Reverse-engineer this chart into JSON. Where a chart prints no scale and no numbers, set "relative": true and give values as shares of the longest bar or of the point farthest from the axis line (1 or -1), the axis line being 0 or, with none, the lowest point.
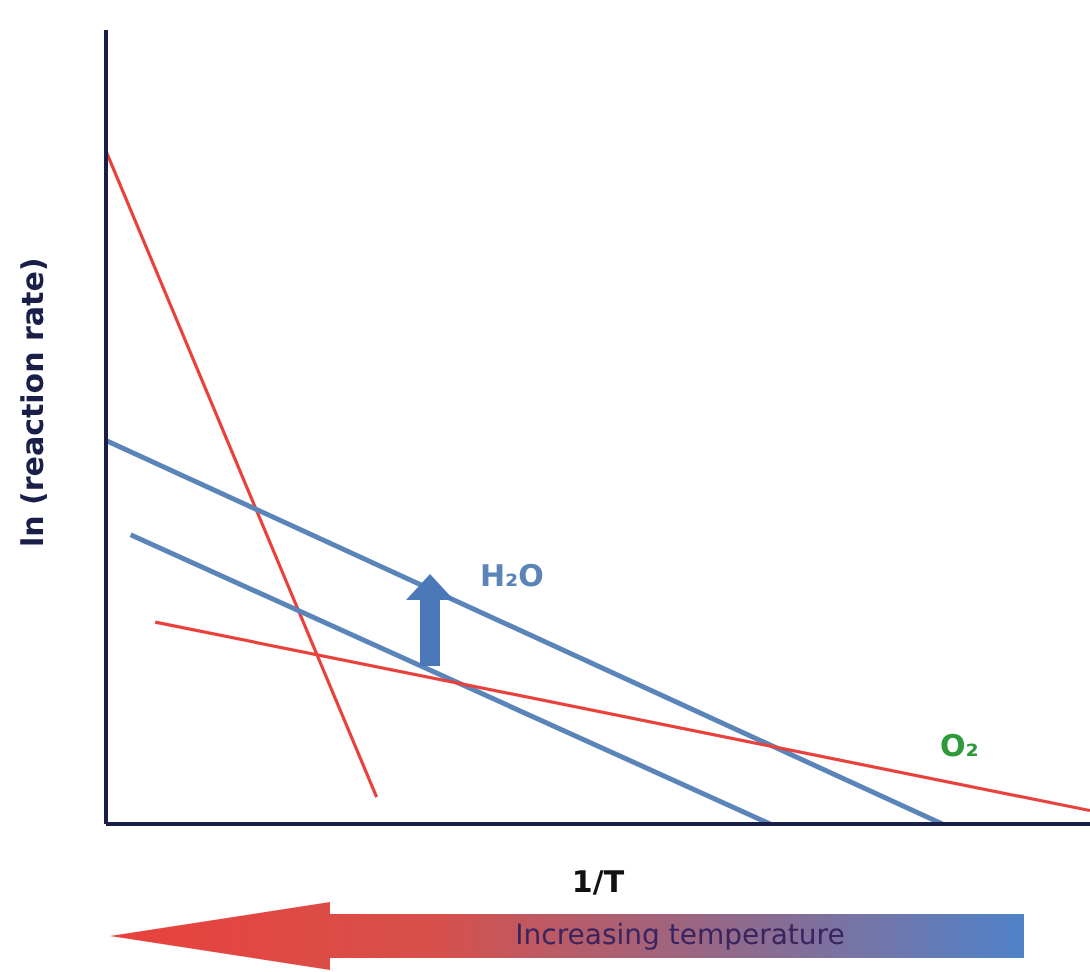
{
  "chart_data": {
    "type": "line",
    "relative": true,
    "xlabel": "1/T",
    "ylabel": "ln (reaction rate)",
    "grid": false,
    "legend": false,
    "marker": "none",
    "line_style": "solid",
    "categories": [
      null,
      null,
      null,
      null,
      null,
      null,
      null,
      null,
      null,
      null,
      null,
      null,
      null,
      null,
      null,
      null,
      null,
      null,
      null,
      null,
      null,
      null,
      null,
      null,
      null,
      null,
      null,
      null,
      null,
      null,
      null,
      null,
      null,
      null,
      null,
      null,
      null,
      null,
      null,
      null,
      null
    ],
    "series": [
      {
        "color": "#e8413c",
        "values": [
          1,
          null,
          null,
          null,
          null,
          null,
          null,
          null,
          null,
          null,
          null,
          0.04,
          null,
          null,
          null,
          null,
          null,
          null,
          null,
          null,
          null,
          null,
          null,
          null,
          null,
          null,
          null,
          null,
          null,
          null,
          null,
          null,
          null,
          null,
          null,
          null,
          null,
          null,
          null,
          null,
          null
        ]
      },
      {
        "color": "#5b84b8",
        "values": [
          0.57,
          null,
          null,
          null,
          null,
          null,
          null,
          null,
          null,
          null,
          null,
          null,
          null,
          null,
          null,
          null,
          null,
          null,
          null,
          null,
          null,
          null,
          null,
          null,
          null,
          null,
          null,
          null,
          null,
          null,
          null,
          null,
          null,
          null,
          0,
          null,
          null,
          null,
          null,
          null,
          null
        ]
      },
      {
        "color": "#5b84b8",
        "values": [
          null,
          0.43,
          null,
          null,
          null,
          null,
          null,
          null,
          null,
          null,
          null,
          null,
          null,
          null,
          null,
          null,
          null,
          null,
          null,
          null,
          null,
          null,
          null,
          null,
          null,
          null,
          null,
          0,
          null,
          null,
          null,
          null,
          null,
          null,
          null,
          null,
          null,
          null,
          null,
          null,
          null
        ]
      },
      {
        "color": "#e8413c",
        "values": [
          null,
          null,
          0.3,
          null,
          null,
          null,
          null,
          null,
          null,
          null,
          null,
          null,
          null,
          null,
          null,
          null,
          null,
          null,
          null,
          null,
          null,
          null,
          null,
          null,
          null,
          null,
          null,
          null,
          null,
          null,
          null,
          null,
          null,
          null,
          null,
          null,
          null,
          null,
          null,
          null,
          0.02
        ]
      }
    ],
    "annotations": [
      "H₂O",
      "O₂",
      "Increasing temperature"
    ]
  }
}
